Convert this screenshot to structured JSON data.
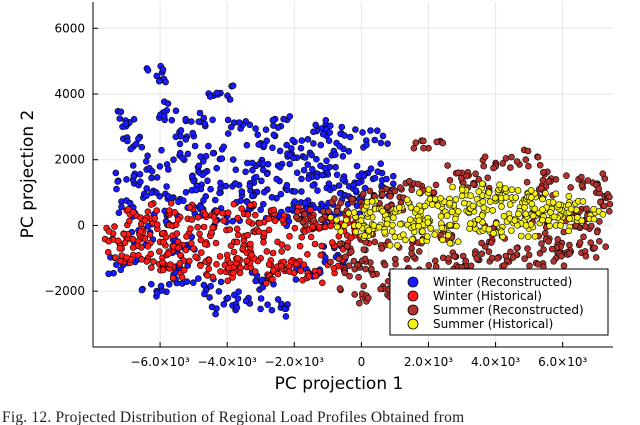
{
  "chart_data": {
    "type": "scatter",
    "title": "",
    "xlabel": "PC projection 1",
    "ylabel": "PC projection 2",
    "xlim": [
      -8000,
      7500
    ],
    "ylim": [
      -3700,
      6800
    ],
    "x_ticks": [
      -6000,
      -4000,
      -2000,
      0,
      2000,
      4000,
      6000
    ],
    "x_tick_labels": [
      "−6.0×10³",
      "−4.0×10³",
      "−2.0×10³",
      "0",
      "2.0×10³",
      "4.0×10³",
      "6.0×10³"
    ],
    "y_ticks": [
      -2000,
      0,
      2000,
      4000,
      6000
    ],
    "y_tick_labels": [
      "−2000",
      "0",
      "2000",
      "4000",
      "6000"
    ],
    "grid": true,
    "legend_position": "bottom-right",
    "series": [
      {
        "name": "Winter (Reconstructed)",
        "color": "#1a1aff",
        "points": [
          [
            -6100,
            4550
          ],
          [
            -4200,
            4030
          ],
          [
            -7200,
            3250
          ],
          [
            -5800,
            3500
          ],
          [
            -4800,
            3150
          ],
          [
            -3600,
            2950
          ],
          [
            -2400,
            3020
          ],
          [
            -1200,
            2950
          ],
          [
            -600,
            2800
          ],
          [
            400,
            2600
          ],
          [
            -5200,
            2700
          ],
          [
            -3000,
            2500
          ],
          [
            -6800,
            2400
          ],
          [
            -1800,
            2350
          ],
          [
            -4400,
            2200
          ],
          [
            -2200,
            2100
          ],
          [
            -800,
            2150
          ],
          [
            -5600,
            2000
          ],
          [
            -3400,
            1900
          ],
          [
            -1600,
            1850
          ],
          [
            -6400,
            1700
          ],
          [
            -4600,
            1650
          ],
          [
            -2800,
            1600
          ],
          [
            -1000,
            1550
          ],
          [
            200,
            1600
          ],
          [
            -7000,
            1400
          ],
          [
            -5000,
            1350
          ],
          [
            -3200,
            1300
          ],
          [
            -1400,
            1250
          ],
          [
            -200,
            1300
          ],
          [
            600,
            1200
          ],
          [
            -6200,
            1050
          ],
          [
            -4200,
            1000
          ],
          [
            -2400,
            950
          ],
          [
            -600,
            980
          ],
          [
            -5400,
            800
          ],
          [
            -3600,
            750
          ],
          [
            -1800,
            700
          ],
          [
            -400,
            650
          ],
          [
            -6800,
            550
          ],
          [
            -4800,
            500
          ],
          [
            -3000,
            480
          ],
          [
            -1200,
            450
          ],
          [
            -5800,
            300
          ],
          [
            -4000,
            280
          ],
          [
            -2200,
            260
          ],
          [
            -800,
            250
          ],
          [
            -6600,
            -300
          ],
          [
            -5200,
            -600
          ],
          [
            -7100,
            -1200
          ],
          [
            -5600,
            -1500
          ],
          [
            -4600,
            -1900
          ],
          [
            -3400,
            -2300
          ],
          [
            -2400,
            -2500
          ],
          [
            -6100,
            -2000
          ],
          [
            -3000,
            -1700
          ],
          [
            -4100,
            -2400
          ],
          [
            -1600,
            -1400
          ],
          [
            -700,
            -900
          ]
        ]
      },
      {
        "name": "Winter (Historical)",
        "color": "#ff1a1a",
        "points": [
          [
            -7400,
            -250
          ],
          [
            -6900,
            -400
          ],
          [
            -6500,
            -150
          ],
          [
            -6000,
            -500
          ],
          [
            -5500,
            -250
          ],
          [
            -5000,
            -700
          ],
          [
            -4500,
            -300
          ],
          [
            -4000,
            -900
          ],
          [
            -3500,
            -450
          ],
          [
            -3000,
            -1000
          ],
          [
            -2500,
            -500
          ],
          [
            -2000,
            -1100
          ],
          [
            -1500,
            -350
          ],
          [
            -1000,
            -1200
          ],
          [
            -500,
            -600
          ],
          [
            -6800,
            -900
          ],
          [
            -6200,
            -1100
          ],
          [
            -5600,
            -1300
          ],
          [
            -4800,
            -1200
          ],
          [
            -4200,
            -1400
          ],
          [
            -3600,
            -1300
          ],
          [
            -2800,
            -1500
          ],
          [
            -2200,
            -1350
          ],
          [
            -1600,
            -1450
          ],
          [
            -6700,
            300
          ],
          [
            -6100,
            450
          ],
          [
            -5400,
            250
          ],
          [
            -4700,
            400
          ],
          [
            -4100,
            150
          ],
          [
            -3500,
            350
          ],
          [
            -2900,
            100
          ],
          [
            -2300,
            300
          ],
          [
            -1700,
            150
          ],
          [
            -1100,
            250
          ],
          [
            -600,
            50
          ],
          [
            -200,
            -300
          ],
          [
            -7200,
            -700
          ],
          [
            -5800,
            -900
          ],
          [
            -3300,
            -800
          ]
        ]
      },
      {
        "name": "Summer (Reconstructed)",
        "color": "#b2322e",
        "points": [
          [
            -1500,
            200
          ],
          [
            -700,
            550
          ],
          [
            0,
            700
          ],
          [
            600,
            900
          ],
          [
            1200,
            1100
          ],
          [
            2000,
            2350
          ],
          [
            3000,
            1600
          ],
          [
            4000,
            1900
          ],
          [
            4900,
            2000
          ],
          [
            5800,
            1400
          ],
          [
            6900,
            1300
          ],
          [
            7200,
            600
          ],
          [
            6800,
            -100
          ],
          [
            6200,
            -600
          ],
          [
            5600,
            -400
          ],
          [
            5000,
            -900
          ],
          [
            4400,
            -1100
          ],
          [
            3800,
            -800
          ],
          [
            3200,
            -1300
          ],
          [
            2600,
            -1100
          ],
          [
            2000,
            -1500
          ],
          [
            1400,
            -1300
          ],
          [
            800,
            -1700
          ],
          [
            300,
            -1400
          ],
          [
            -200,
            -2100
          ],
          [
            1100,
            -2200
          ],
          [
            2200,
            -2000
          ],
          [
            3400,
            -1600
          ],
          [
            4600,
            -1500
          ],
          [
            5800,
            -1000
          ],
          [
            6900,
            -700
          ],
          [
            -300,
            -800
          ],
          [
            400,
            -500
          ],
          [
            1500,
            -700
          ],
          [
            2700,
            -300
          ],
          [
            3900,
            -300
          ],
          [
            5100,
            100
          ],
          [
            6300,
            300
          ],
          [
            7000,
            1000
          ],
          [
            1800,
            1200
          ],
          [
            3500,
            1400
          ],
          [
            5300,
            1100
          ],
          [
            -500,
            -1300
          ],
          [
            900,
            600
          ]
        ]
      },
      {
        "name": "Summer (Historical)",
        "color": "#f5f011",
        "points": [
          [
            -500,
            0
          ],
          [
            0,
            250
          ],
          [
            400,
            -100
          ],
          [
            800,
            300
          ],
          [
            1200,
            50
          ],
          [
            1600,
            400
          ],
          [
            2000,
            100
          ],
          [
            2400,
            550
          ],
          [
            2800,
            200
          ],
          [
            3200,
            650
          ],
          [
            3600,
            300
          ],
          [
            4000,
            750
          ],
          [
            4400,
            350
          ],
          [
            4800,
            700
          ],
          [
            5200,
            300
          ],
          [
            5600,
            550
          ],
          [
            6000,
            250
          ],
          [
            6400,
            450
          ],
          [
            6800,
            200
          ],
          [
            200,
            -300
          ],
          [
            1000,
            -350
          ],
          [
            1800,
            -200
          ],
          [
            2600,
            -250
          ],
          [
            3400,
            -100
          ],
          [
            4200,
            -50
          ],
          [
            5000,
            -100
          ],
          [
            5800,
            0
          ],
          [
            600,
            500
          ],
          [
            1400,
            700
          ],
          [
            2200,
            800
          ],
          [
            3000,
            900
          ],
          [
            3800,
            1000
          ],
          [
            4600,
            850
          ],
          [
            5400,
            800
          ],
          [
            6200,
            700
          ]
        ]
      }
    ]
  },
  "caption": "Fig. 12.  Projected Distribution of Regional Load Profiles Obtained from"
}
